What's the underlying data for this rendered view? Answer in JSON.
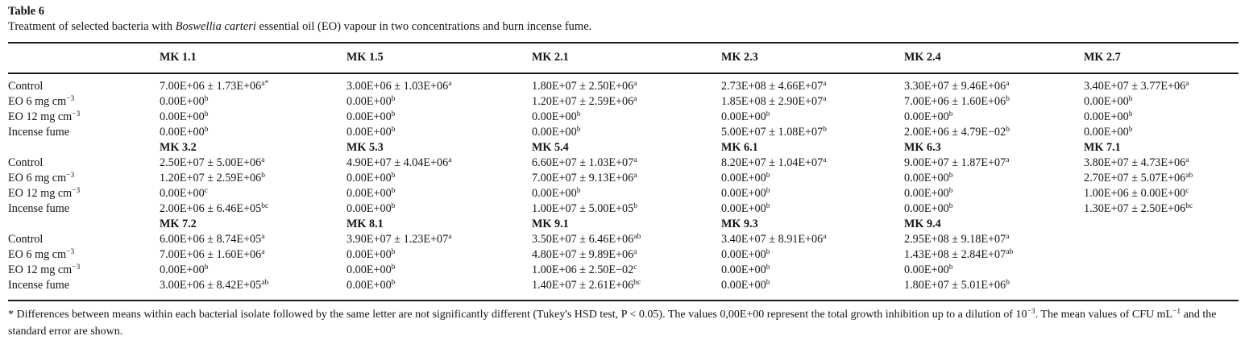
{
  "page": {
    "title": "Table 6"
  },
  "caption_parts": [
    {
      "t": "Treatment of selected bacteria with "
    },
    {
      "i": "Boswellia carteri"
    },
    {
      "t": " essential oil (EO) vapour in two concentrations and burn incense fume."
    }
  ],
  "table": {
    "treatments": [
      {
        "m": "Control",
        "s": ""
      },
      {
        "m": "EO 6 mg cm",
        "s": "−3"
      },
      {
        "m": "EO 12 mg cm",
        "s": "−3"
      },
      {
        "m": "Incense fume",
        "s": ""
      }
    ],
    "blocks": [
      {
        "headers": [
          "MK 1.1",
          "MK 1.5",
          "MK 2.1",
          "MK 2.3",
          "MK 2.4",
          "MK 2.7"
        ],
        "rows": [
          [
            {
              "m": "7.00E+06 ± 1.73E+06",
              "s": "a*"
            },
            {
              "m": "3.00E+06 ± 1.03E+06",
              "s": "a"
            },
            {
              "m": "1.80E+07 ± 2.50E+06",
              "s": "a"
            },
            {
              "m": "2.73E+08 ± 4.66E+07",
              "s": "a"
            },
            {
              "m": "3.30E+07 ± 9.46E+06",
              "s": "a"
            },
            {
              "m": "3.40E+07 ± 3.77E+06",
              "s": "a"
            }
          ],
          [
            {
              "m": "0.00E+00",
              "s": "b"
            },
            {
              "m": "0.00E+00",
              "s": "b"
            },
            {
              "m": "1.20E+07 ± 2.59E+06",
              "s": "a"
            },
            {
              "m": "1.85E+08 ± 2.90E+07",
              "s": "a"
            },
            {
              "m": "7.00E+06 ± 1.60E+06",
              "s": "b"
            },
            {
              "m": "0.00E+00",
              "s": "b"
            }
          ],
          [
            {
              "m": "0.00E+00",
              "s": "b"
            },
            {
              "m": "0.00E+00",
              "s": "b"
            },
            {
              "m": "0.00E+00",
              "s": "b"
            },
            {
              "m": "0.00E+00",
              "s": "b"
            },
            {
              "m": "0.00E+00",
              "s": "b"
            },
            {
              "m": "0.00E+00",
              "s": "b"
            }
          ],
          [
            {
              "m": "0.00E+00",
              "s": "b"
            },
            {
              "m": "0.00E+00",
              "s": "b"
            },
            {
              "m": "0.00E+00",
              "s": "b"
            },
            {
              "m": "5.00E+07 ± 1.08E+07",
              "s": "b"
            },
            {
              "m": "2.00E+06 ± 4.79E−02",
              "s": "b"
            },
            {
              "m": "0.00E+00",
              "s": "b"
            }
          ]
        ]
      },
      {
        "headers": [
          "MK 3.2",
          "MK 5.3",
          "MK 5.4",
          "MK 6.1",
          "MK 6.3",
          "MK 7.1"
        ],
        "rows": [
          [
            {
              "m": "2.50E+07 ± 5.00E+06",
              "s": "a"
            },
            {
              "m": "4.90E+07 ± 4.04E+06",
              "s": "a"
            },
            {
              "m": "6.60E+07 ± 1.03E+07",
              "s": "a"
            },
            {
              "m": "8.20E+07 ± 1.04E+07",
              "s": "a"
            },
            {
              "m": "9.00E+07 ± 1.87E+07",
              "s": "a"
            },
            {
              "m": "3.80E+07 ± 4.73E+06",
              "s": "a"
            }
          ],
          [
            {
              "m": "1.20E+07 ± 2.59E+06",
              "s": "b"
            },
            {
              "m": "0.00E+00",
              "s": "b"
            },
            {
              "m": "7.00E+07 ± 9.13E+06",
              "s": "a"
            },
            {
              "m": "0.00E+00",
              "s": "b"
            },
            {
              "m": "0.00E+00",
              "s": "b"
            },
            {
              "m": "2.70E+07 ± 5.07E+06",
              "s": "ab"
            }
          ],
          [
            {
              "m": "0.00E+00",
              "s": "c"
            },
            {
              "m": "0.00E+00",
              "s": "b"
            },
            {
              "m": "0.00E+00",
              "s": "b"
            },
            {
              "m": "0.00E+00",
              "s": "b"
            },
            {
              "m": "0.00E+00",
              "s": "b"
            },
            {
              "m": "1.00E+06 ± 0.00E+00",
              "s": "c"
            }
          ],
          [
            {
              "m": "2.00E+06 ± 6.46E+05",
              "s": "bc"
            },
            {
              "m": "0.00E+00",
              "s": "b"
            },
            {
              "m": "1.00E+07 ± 5.00E+05",
              "s": "b"
            },
            {
              "m": "0.00E+00",
              "s": "b"
            },
            {
              "m": "0.00E+00",
              "s": "b"
            },
            {
              "m": "1.30E+07 ± 2.50E+06",
              "s": "bc"
            }
          ]
        ]
      },
      {
        "headers": [
          "MK 7.2",
          "MK 8.1",
          "MK 9.1",
          "MK 9.3",
          "MK 9.4",
          ""
        ],
        "rows": [
          [
            {
              "m": "6.00E+06 ± 8.74E+05",
              "s": "a"
            },
            {
              "m": "3.90E+07 ± 1.23E+07",
              "s": "a"
            },
            {
              "m": "3.50E+07 ± 6.46E+06",
              "s": "ab"
            },
            {
              "m": "3.40E+07 ± 8.91E+06",
              "s": "a"
            },
            {
              "m": "2.95E+08 ± 9.18E+07",
              "s": "a"
            },
            null
          ],
          [
            {
              "m": "7.00E+06 ± 1.60E+06",
              "s": "a"
            },
            {
              "m": "0.00E+00",
              "s": "b"
            },
            {
              "m": "4.80E+07 ± 9.89E+06",
              "s": "a"
            },
            {
              "m": "0.00E+00",
              "s": "b"
            },
            {
              "m": "1.43E+08 ± 2.84E+07",
              "s": "ab"
            },
            null
          ],
          [
            {
              "m": "0.00E+00",
              "s": "b"
            },
            {
              "m": "0.00E+00",
              "s": "b"
            },
            {
              "m": "1.00E+06 ± 2.50E−02",
              "s": "c"
            },
            {
              "m": "0.00E+00",
              "s": "b"
            },
            {
              "m": "0.00E+00",
              "s": "b"
            },
            null
          ],
          [
            {
              "m": "3.00E+06 ± 8.42E+05",
              "s": "ab"
            },
            {
              "m": "0.00E+00",
              "s": "b"
            },
            {
              "m": "1.40E+07 ± 2.61E+06",
              "s": "bc"
            },
            {
              "m": "0.00E+00",
              "s": "b"
            },
            {
              "m": "1.80E+07 ± 5.01E+06",
              "s": "b"
            },
            null
          ]
        ]
      }
    ]
  },
  "footnote_parts": [
    {
      "t": "* Differences between means within each bacterial isolate followed by the same letter are not significantly different (Tukey's HSD test, P < 0.05). The values 0,00E+00 represent the total growth inhibition up to a dilution of 10"
    },
    {
      "sup": "−3"
    },
    {
      "t": ". The mean values of CFU mL"
    },
    {
      "sup": "−1"
    },
    {
      "t": " and the standard error are shown."
    }
  ]
}
